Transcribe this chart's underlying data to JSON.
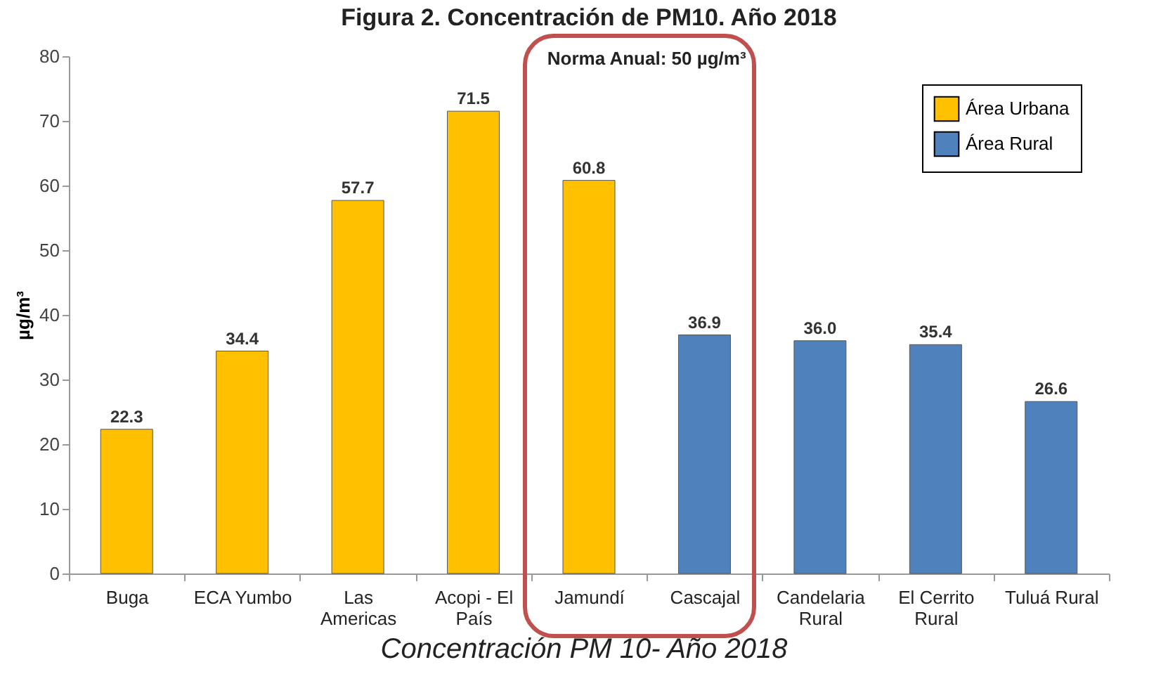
{
  "chart_data": {
    "type": "bar",
    "title": "Figura 2. Concentración de PM10. Año 2018",
    "ylabel": "µg/m³",
    "categories": [
      "Buga",
      "ECA Yumbo",
      "Las Americas",
      "Acopi - El País",
      "Jamundí",
      "Cascajal",
      "Candelaria Rural",
      "El Cerrito Rural",
      "Tuluá Rural"
    ],
    "series": [
      {
        "name": "Área Urbana",
        "color": "#ffc000",
        "values": [
          22.3,
          34.4,
          57.7,
          71.5,
          60.8,
          null,
          null,
          null,
          null
        ],
        "value_labels": [
          "22.3",
          "34.4",
          "57.7",
          "71.5",
          "60.8",
          null,
          null,
          null,
          null
        ]
      },
      {
        "name": "Área Rural",
        "color": "#4f81bd",
        "values": [
          null,
          null,
          null,
          null,
          null,
          36.9,
          36.0,
          35.4,
          26.6
        ],
        "value_labels": [
          null,
          null,
          null,
          null,
          null,
          "36.9",
          "36.0",
          "35.4",
          "26.6"
        ]
      }
    ],
    "ylim": [
      0,
      80
    ],
    "yticks": [
      0,
      10,
      20,
      30,
      40,
      50,
      60,
      70,
      80
    ],
    "grid": false,
    "legend": "top right",
    "annotations": [
      "Norma Anual: 50 µg/m³",
      "Concentración PM 10- Año 2018"
    ]
  }
}
